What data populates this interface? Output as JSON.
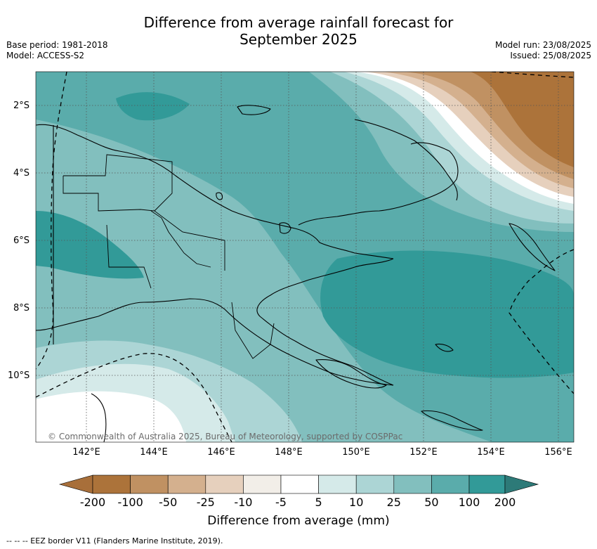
{
  "title": {
    "line1": "Difference from average rainfall forecast for",
    "line2": "September 2025"
  },
  "meta": {
    "base_period": "Base period: 1981-2018",
    "model": "Model: ACCESS-S2",
    "model_run": "Model run: 23/08/2025",
    "issued": "Issued: 25/08/2025"
  },
  "map": {
    "latitude_labels": [
      "2°S",
      "4°S",
      "6°S",
      "8°S",
      "10°S"
    ],
    "longitude_labels": [
      "142°E",
      "144°E",
      "146°E",
      "148°E",
      "150°E",
      "152°E",
      "154°E",
      "156°E"
    ],
    "copyright": "© Commonwealth of Australia 2025, Bureau of Meteorology, supported by COSPPac",
    "gridlines": "dotted"
  },
  "colorbar": {
    "title": "Difference from average (mm)",
    "ticks": [
      "-200",
      "-100",
      "-50",
      "-25",
      "-10",
      "-5",
      "5",
      "10",
      "25",
      "50",
      "100",
      "200"
    ],
    "colors": [
      "#a86f3a",
      "#ac733a",
      "#c09162",
      "#d4b08e",
      "#e6d0bd",
      "#f2eee8",
      "#ffffff",
      "#d5eae9",
      "#acd5d5",
      "#82bfbe",
      "#5aacab",
      "#329a98",
      "#2d7a78"
    ]
  },
  "legend": {
    "eez": "--  --  -- EEZ border V11 (Flanders Marine Institute, 2019)."
  }
}
